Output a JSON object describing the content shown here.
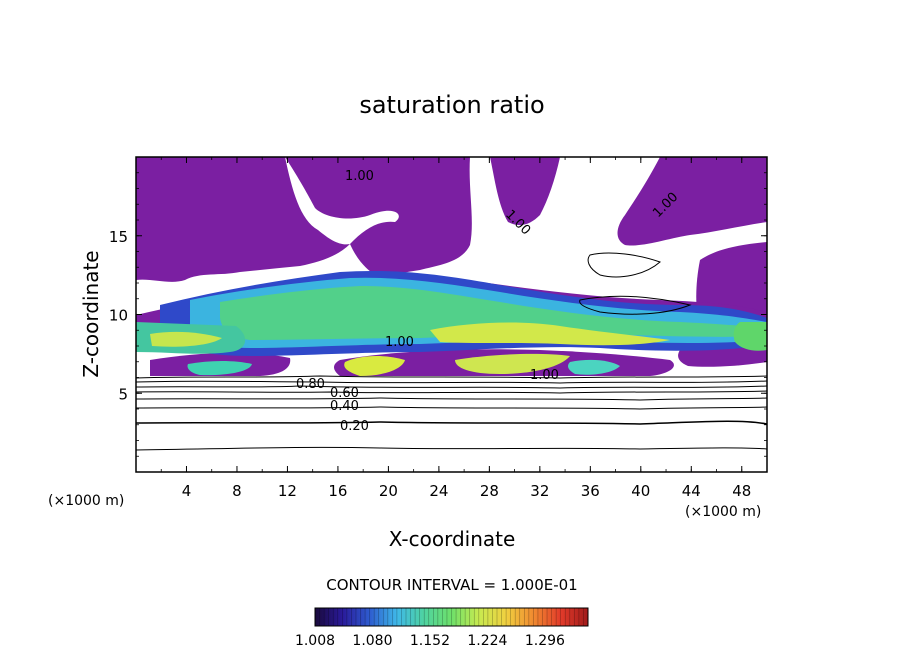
{
  "chart_data": {
    "type": "heatmap",
    "title": "saturation ratio",
    "xlabel": "X-coordinate",
    "ylabel": "Z-coordinate",
    "x_unit_label": "(×1000 m)",
    "z_unit_label": "(×1000 m)",
    "xlim": [
      0,
      50
    ],
    "ylim": [
      0,
      20
    ],
    "x_ticks": [
      "4",
      "8",
      "12",
      "16",
      "20",
      "24",
      "28",
      "32",
      "36",
      "40",
      "44",
      "48"
    ],
    "y_ticks": [
      "5",
      "10",
      "15"
    ],
    "contour_interval_text": "CONTOUR INTERVAL = 1.000E-01",
    "contour_labels": [
      "1.00",
      "1.00",
      "1.00",
      "1.00",
      "1.00",
      "0.80",
      "0.60",
      "0.40",
      "0.20"
    ],
    "colorbar": {
      "min": 1.008,
      "max": 1.35,
      "tick_labels": [
        "1.008",
        "1.080",
        "1.152",
        "1.224",
        "1.296"
      ],
      "colors": [
        "#1a0a3c",
        "#2a1a9a",
        "#2e5ccf",
        "#3fb8e8",
        "#4fd3a0",
        "#6ee06a",
        "#c8ea50",
        "#f0d040",
        "#f08a30",
        "#e23b2a",
        "#a01a1a"
      ]
    },
    "saturated_fill_color": "#7b1fa2"
  }
}
